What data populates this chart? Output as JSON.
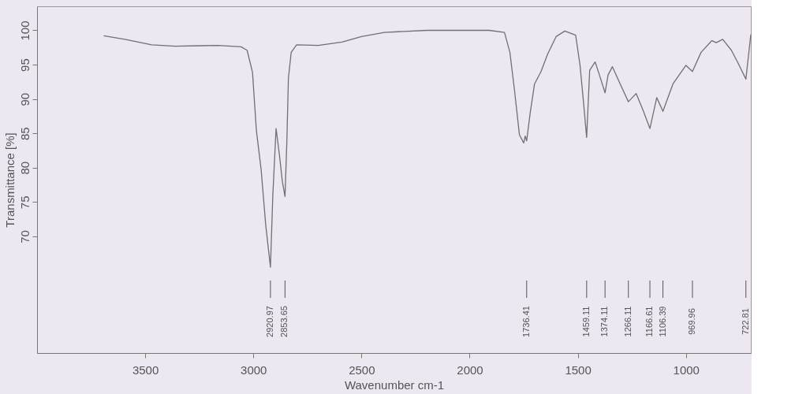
{
  "chart_data": {
    "type": "line",
    "xlabel": "Wavenumber cm-1",
    "ylabel": "Transmittance [%]",
    "xlim": [
      4000,
      700
    ],
    "ylim": [
      53,
      103.5
    ],
    "xticks": [
      3500,
      3000,
      2500,
      2000,
      1500,
      1000
    ],
    "yticks": [
      70,
      75,
      80,
      85,
      90,
      95,
      100
    ],
    "grid": false,
    "marker": "none",
    "line_style": "solid",
    "series": [
      {
        "color": "#707070",
        "x": [
          3692,
          3595,
          3470,
          3362,
          3165,
          3057,
          3029,
          3004,
          2986,
          2964,
          2943,
          2921,
          2910,
          2895,
          2880,
          2866,
          2853.65,
          2845,
          2838,
          2825,
          2800,
          2700,
          2590,
          2500,
          2394,
          2197,
          1910,
          1839,
          1814,
          1792,
          1770,
          1750,
          1743,
          1736.41,
          1720,
          1700,
          1670,
          1640,
          1600,
          1560,
          1510,
          1490,
          1475,
          1459.11,
          1445,
          1420,
          1400,
          1374.11,
          1360,
          1340,
          1300,
          1266.11,
          1230,
          1200,
          1166.61,
          1135,
          1106.39,
          1060,
          1000,
          969.96,
          930,
          880,
          860,
          830,
          790,
          760,
          722.81,
          700
        ],
        "values": [
          99.2,
          98.7,
          97.9,
          97.7,
          97.8,
          97.6,
          97.1,
          93.9,
          85.4,
          79.7,
          71.7,
          65.5,
          76.0,
          85.7,
          82.0,
          78.0,
          75.8,
          84.0,
          93.0,
          96.8,
          97.9,
          97.8,
          98.3,
          99.1,
          99.7,
          100.0,
          100.0,
          99.7,
          96.8,
          91.1,
          84.8,
          83.6,
          84.6,
          83.9,
          88.0,
          92.2,
          94.0,
          96.5,
          99.1,
          99.9,
          99.3,
          95.0,
          90.0,
          84.4,
          94.2,
          95.4,
          93.5,
          90.9,
          93.5,
          94.7,
          91.9,
          89.6,
          90.8,
          88.5,
          85.7,
          90.2,
          88.2,
          92.2,
          94.9,
          94.0,
          96.8,
          98.5,
          98.2,
          98.7,
          97.1,
          95.3,
          92.9,
          99.4
        ]
      }
    ],
    "annotations": [
      {
        "text": "2920.97",
        "x": 2920.97
      },
      {
        "text": "2853.65",
        "x": 2853.65
      },
      {
        "text": "1736.41",
        "x": 1736.41
      },
      {
        "text": "1459.11",
        "x": 1459.11
      },
      {
        "text": "1374.11",
        "x": 1374.11
      },
      {
        "text": "1266.11",
        "x": 1266.11
      },
      {
        "text": "1166.61",
        "x": 1166.61
      },
      {
        "text": "1106.39",
        "x": 1106.39
      },
      {
        "text": "969.96",
        "x": 969.96
      },
      {
        "text": "722.81",
        "x": 722.81
      }
    ]
  }
}
